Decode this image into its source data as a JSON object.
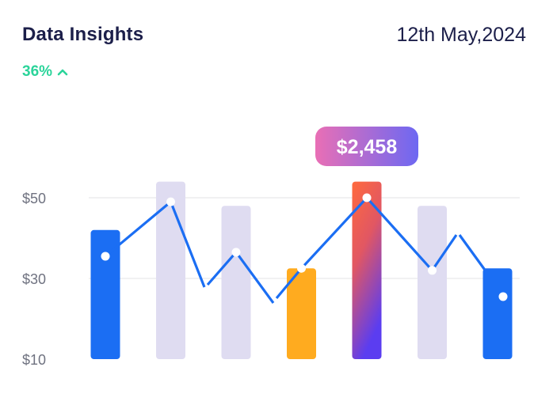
{
  "header": {
    "title": "Data Insights",
    "date": "12th May,2024",
    "change": "36%",
    "change_icon": "chevron-up-icon"
  },
  "colors": {
    "blue": "#1b6ef3",
    "lavender": "#dfdcf1",
    "orange": "#ffab1f",
    "line": "#1b6ef3",
    "accent_green": "#2bd49a",
    "gradient_top": "#ff6a3d",
    "gradient_bottom": "#5b3df0",
    "tooltip_left": "#e96fb5",
    "tooltip_right": "#6d68f2"
  },
  "chart_data": {
    "type": "bar",
    "title": "",
    "xlabel": "",
    "ylabel": "",
    "y_ticks": [
      "$10",
      "$30",
      "$50"
    ],
    "y_tick_values": [
      10,
      30,
      50
    ],
    "ylim": [
      10,
      50
    ],
    "grid": true,
    "categories": [],
    "bars": [
      {
        "value": 42,
        "style": "blue"
      },
      {
        "value": 54,
        "style": "lavender"
      },
      {
        "value": 48,
        "style": "lavender"
      },
      {
        "value": 32.5,
        "style": "orange"
      },
      {
        "value": 54,
        "style": "gradient",
        "highlighted": true
      },
      {
        "value": 48,
        "style": "lavender"
      },
      {
        "value": 32.5,
        "style": "blue"
      }
    ],
    "line_points": [
      35.5,
      49,
      36.5,
      32.5,
      50,
      32,
      25.5
    ],
    "line_style": "dashed-gaps",
    "tooltip": {
      "bar_index": 4,
      "label": "$2,458"
    }
  }
}
